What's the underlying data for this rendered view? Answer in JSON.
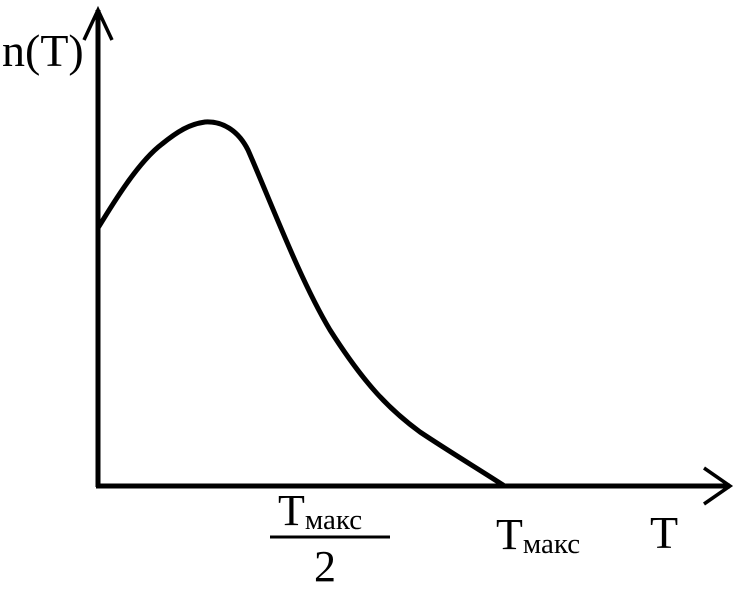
{
  "diagram": {
    "y_axis_label": "n(T)",
    "x_axis_label": "T",
    "tmax": {
      "main": "T",
      "sub": "макс"
    },
    "half_tmax": {
      "numerator_main": "T",
      "numerator_sub": "макс",
      "denominator": "2"
    },
    "colors": {
      "line": "#000000",
      "background": "#ffffff"
    }
  }
}
